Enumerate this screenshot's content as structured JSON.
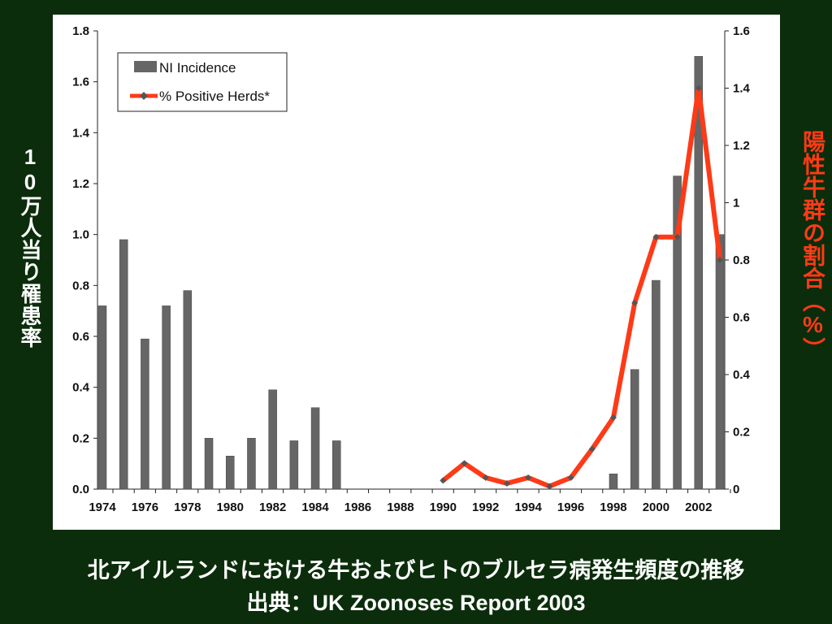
{
  "texts": {
    "left_axis_label": "10万人当り罹患率",
    "right_axis_label": "陽性牛群の割合（%）",
    "caption_line1": "北アイルランドにおける牛およびヒトのブルセラ病発生頻度の推移",
    "caption_line2": "出典：UK Zoonoses Report 2003"
  },
  "colors": {
    "background": "#0b2d0b",
    "bar": "#666666",
    "line": "#ff3a17",
    "right_label": "#ff3a17"
  },
  "chart_data": {
    "type": "bar",
    "title": "",
    "legend_position": "top-left",
    "grid": false,
    "x": [
      1974,
      1975,
      1976,
      1977,
      1978,
      1979,
      1980,
      1981,
      1982,
      1983,
      1984,
      1985,
      1986,
      1987,
      1988,
      1989,
      1990,
      1991,
      1992,
      1993,
      1994,
      1995,
      1996,
      1997,
      1998,
      1999,
      2000,
      2001,
      2002,
      2003
    ],
    "x_tick_labels": [
      "1974",
      "1976",
      "1978",
      "1980",
      "1982",
      "1984",
      "1986",
      "1988",
      "1990",
      "1992",
      "1994",
      "1996",
      "1998",
      "2000",
      "2002"
    ],
    "y_left": {
      "ylim": [
        0,
        1.8
      ],
      "ticks": [
        "0.0",
        "0.2",
        "0.4",
        "0.6",
        "0.8",
        "1.0",
        "1.2",
        "1.4",
        "1.6",
        "1.8"
      ]
    },
    "y_right": {
      "ylim": [
        0,
        1.6
      ],
      "ticks": [
        "0",
        "0.2",
        "0.4",
        "0.6",
        "0.8",
        "1",
        "1.2",
        "1.4",
        "1.6"
      ]
    },
    "series": [
      {
        "name": "NI Incidence",
        "type": "bar",
        "axis": "left",
        "values": [
          0.72,
          0.98,
          0.59,
          0.72,
          0.78,
          0.2,
          0.13,
          0.2,
          0.39,
          0.19,
          0.32,
          0.19,
          null,
          null,
          null,
          null,
          null,
          null,
          null,
          null,
          null,
          null,
          null,
          null,
          0.06,
          0.47,
          0.82,
          1.23,
          1.7,
          1.0
        ]
      },
      {
        "name": "% Positive Herds*",
        "type": "line",
        "axis": "right",
        "values": [
          null,
          null,
          null,
          null,
          null,
          null,
          null,
          null,
          null,
          null,
          null,
          null,
          null,
          null,
          null,
          null,
          0.03,
          0.09,
          0.04,
          0.02,
          0.04,
          0.01,
          0.04,
          0.14,
          0.25,
          0.65,
          0.88,
          0.88,
          1.4,
          0.8
        ]
      }
    ]
  }
}
